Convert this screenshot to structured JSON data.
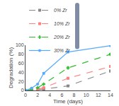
{
  "chart_data": {
    "type": "line",
    "xlabel": "Time (days)",
    "ylabel": "Degradation (%)",
    "xlim": [
      0,
      14
    ],
    "ylim": [
      0,
      100
    ],
    "xticks": [
      0,
      2,
      4,
      6,
      8,
      10,
      12,
      14
    ],
    "yticks": [
      0,
      20,
      40,
      60,
      80,
      100
    ],
    "grid": false,
    "legend": "upper left",
    "series": [
      {
        "name": "0% Zr",
        "color": "#888888",
        "line_style": "dashed",
        "marker": "square",
        "x": [
          0,
          1,
          2,
          3,
          7,
          14
        ],
        "values": [
          0,
          0.5,
          1.5,
          3,
          10,
          43
        ],
        "yerr": [
          0,
          0.3,
          0.3,
          0.5,
          1,
          2
        ]
      },
      {
        "name": "10% Zr",
        "color": "#ff8080",
        "line_style": "dashed",
        "marker": "square",
        "x": [
          0,
          1,
          2,
          3,
          7,
          14
        ],
        "values": [
          0,
          1,
          3,
          6,
          27,
          53
        ],
        "yerr": [
          0,
          0.3,
          0.5,
          1,
          2,
          2
        ]
      },
      {
        "name": "20% Zr",
        "color": "#33bb33",
        "line_style": "dashed",
        "marker": "plus",
        "x": [
          0,
          1,
          2,
          3,
          7,
          14
        ],
        "values": [
          0,
          2,
          6,
          14,
          50,
          80
        ],
        "yerr": [
          0,
          0.5,
          1,
          1,
          2,
          2
        ]
      },
      {
        "name": "30% Zr",
        "color": "#55aaff",
        "line_style": "solid",
        "marker": "circle",
        "x": [
          0,
          1,
          2,
          3,
          7,
          14
        ],
        "values": [
          0,
          5,
          14,
          38,
          85,
          99
        ],
        "yerr": [
          0,
          0.5,
          1,
          2,
          2,
          1
        ]
      }
    ]
  }
}
